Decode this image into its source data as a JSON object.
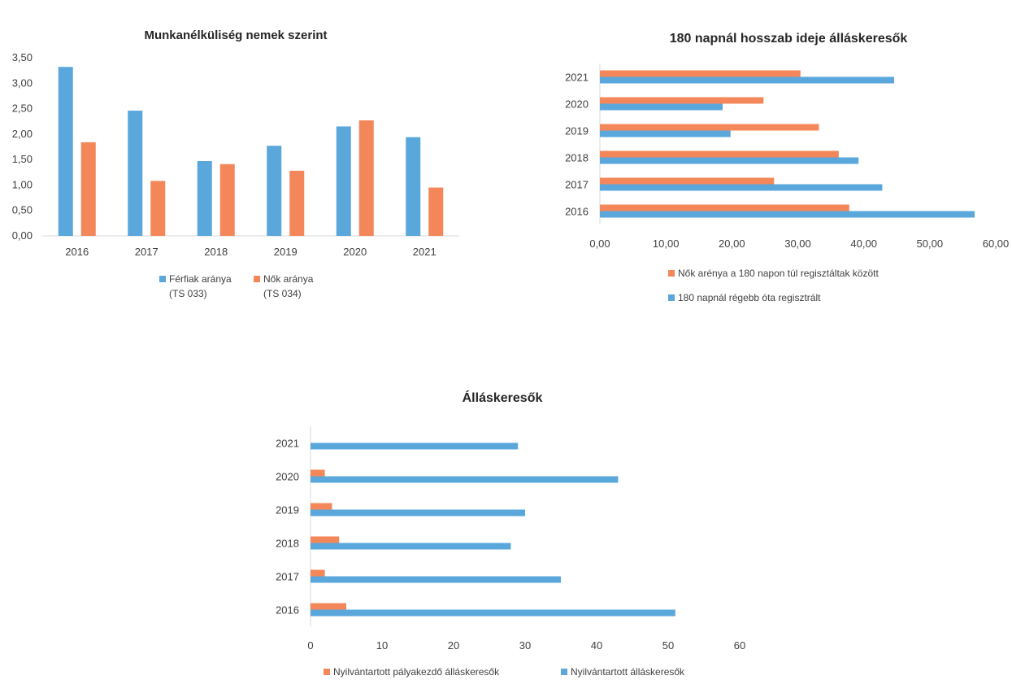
{
  "colors": {
    "blue": "#5aa7dc",
    "orange": "#f4875a",
    "axis": "#d9d9d9"
  },
  "chart_data": [
    {
      "type": "bar",
      "title": "Munkanélküliség nemek szerint",
      "categories": [
        "2016",
        "2017",
        "2018",
        "2019",
        "2020",
        "2021"
      ],
      "yticks": [
        "0,00",
        "0,50",
        "1,00",
        "1,50",
        "2,00",
        "2,50",
        "3,00",
        "3,50"
      ],
      "ylim": [
        0,
        3.5
      ],
      "grid": false,
      "legend_position": "bottom",
      "series": [
        {
          "name": "Férfiak aránya",
          "name2": "(TS 033)",
          "color": "#5aa7dc",
          "values": [
            3.32,
            2.46,
            1.47,
            1.77,
            2.15,
            1.94
          ]
        },
        {
          "name": "Nők aránya",
          "name2": "(TS 034)",
          "color": "#f4875a",
          "values": [
            1.84,
            1.08,
            1.41,
            1.28,
            2.27,
            0.95
          ]
        }
      ]
    },
    {
      "type": "bar",
      "orientation": "horizontal",
      "title": "180 napnál hosszab ideje álláskeresők",
      "categories": [
        "2016",
        "2017",
        "2018",
        "2019",
        "2020",
        "2021"
      ],
      "xticks": [
        "0,00",
        "10,00",
        "20,00",
        "30,00",
        "40,00",
        "50,00",
        "60,00"
      ],
      "xlim": [
        0,
        60
      ],
      "grid": false,
      "legend_position": "bottom",
      "series": [
        {
          "name": "Nők arénya a 180 napon túl regisztáltak között",
          "color": "#f4875a",
          "values": [
            37.8,
            26.4,
            36.2,
            33.2,
            24.8,
            30.4
          ]
        },
        {
          "name": "180 napnál régebb óta regisztrált",
          "color": "#5aa7dc",
          "values": [
            56.8,
            42.8,
            39.2,
            19.8,
            18.6,
            44.6
          ]
        }
      ]
    },
    {
      "type": "bar",
      "orientation": "horizontal",
      "title": "Álláskeresők",
      "categories": [
        "2016",
        "2017",
        "2018",
        "2019",
        "2020",
        "2021"
      ],
      "xticks": [
        "0",
        "10",
        "20",
        "30",
        "40",
        "50",
        "60"
      ],
      "xlim": [
        0,
        60
      ],
      "grid": false,
      "legend_position": "bottom",
      "series": [
        {
          "name": "Nyilvántartott pályakezdő álláskeresők",
          "color": "#f4875a",
          "values": [
            5,
            2,
            4,
            3,
            2,
            0
          ]
        },
        {
          "name": "Nyilvántartott álláskeresők",
          "color": "#5aa7dc",
          "values": [
            51,
            35,
            28,
            30,
            43,
            29
          ]
        }
      ]
    }
  ]
}
